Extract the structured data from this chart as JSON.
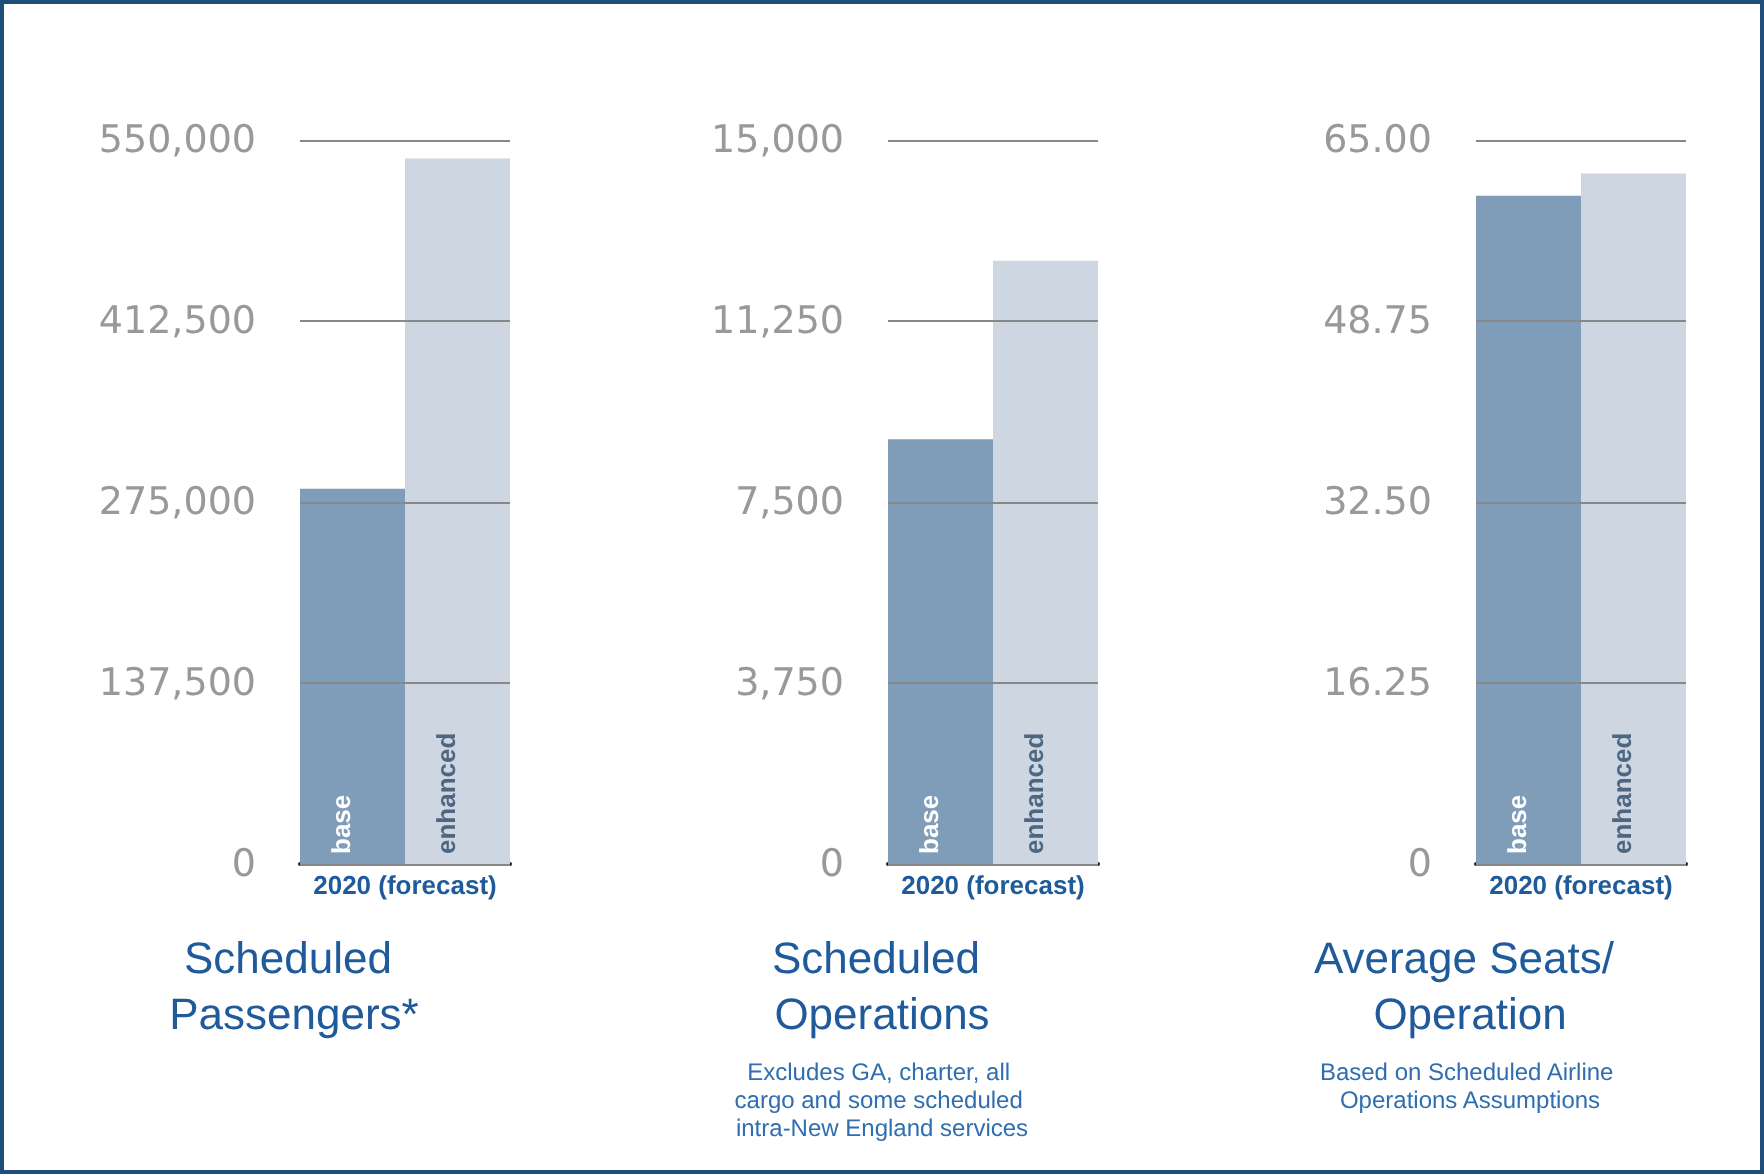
{
  "chart_data": [
    {
      "type": "bar",
      "title": "Scheduled Passengers*",
      "categories": [
        "2020 (forecast)"
      ],
      "series": [
        {
          "name": "base",
          "color": "#7f9cb8",
          "values": [
            285000
          ]
        },
        {
          "name": "enhanced",
          "color": "#cdd6e1",
          "values": [
            536000
          ]
        }
      ],
      "ylim": [
        0,
        550000
      ],
      "yticks": [
        0,
        {
          "value": 137500,
          "label": "137,500"
        },
        {
          "value": 275000,
          "label": "275,000"
        },
        {
          "value": 412500,
          "label": "412,500"
        },
        {
          "value": 550000,
          "label": "550,000"
        }
      ],
      "grid": "y",
      "legend": false
    },
    {
      "type": "bar",
      "title": "Scheduled Operations",
      "categories": [
        "2020 (forecast)"
      ],
      "series": [
        {
          "name": "base",
          "color": "#7f9cb8",
          "values": [
            8800
          ]
        },
        {
          "name": "enhanced",
          "color": "#cdd6e1",
          "values": [
            12500
          ]
        }
      ],
      "ylim": [
        0,
        15000
      ],
      "yticks": [
        0,
        {
          "value": 3750,
          "label": "3,750"
        },
        {
          "value": 7500,
          "label": "7,500"
        },
        {
          "value": 11250,
          "label": "11,250"
        },
        {
          "value": 15000,
          "label": "15,000"
        }
      ],
      "grid": "y",
      "legend": false,
      "annotations": [
        "Excludes GA, charter, all cargo and some scheduled intra-New England services"
      ]
    },
    {
      "type": "bar",
      "title": "Average Seats/ Operation",
      "categories": [
        "2020 (forecast)"
      ],
      "series": [
        {
          "name": "base",
          "color": "#7f9cb8",
          "values": [
            60
          ]
        },
        {
          "name": "enhanced",
          "color": "#cdd6e1",
          "values": [
            62
          ]
        }
      ],
      "ylim": [
        0,
        65
      ],
      "yticks": [
        0,
        16.25,
        {
          "value": 32.5,
          "label": "32.50"
        },
        48.75,
        {
          "value": 65,
          "label": "65.00"
        }
      ],
      "grid": "y",
      "legend": false,
      "annotations": [
        "Based on Scheduled Airline Operations Assumptions"
      ]
    }
  ]
}
